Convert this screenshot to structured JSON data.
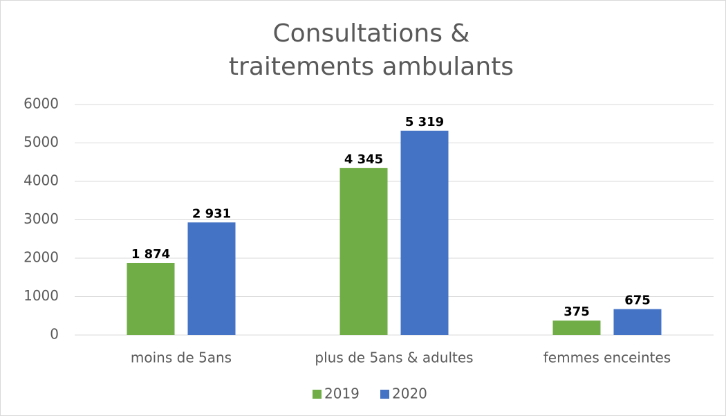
{
  "chart_data": {
    "type": "bar",
    "title": [
      "Consultations &",
      "traitements ambulants"
    ],
    "categories": [
      "moins de 5ans",
      "plus de 5ans & adultes",
      "femmes enceintes"
    ],
    "series": [
      {
        "name": "2019",
        "color": "#70ad47",
        "values": [
          1874,
          4345,
          375
        ],
        "value_labels": [
          "1 874",
          "4 345",
          "375"
        ]
      },
      {
        "name": "2020",
        "color": "#4472c4",
        "values": [
          2931,
          5319,
          675
        ],
        "value_labels": [
          "2 931",
          "5 319",
          "675"
        ]
      }
    ],
    "ylim": [
      0,
      6000
    ],
    "yticks": [
      0,
      1000,
      2000,
      3000,
      4000,
      5000,
      6000
    ],
    "grid": true,
    "legend": "bottom"
  }
}
